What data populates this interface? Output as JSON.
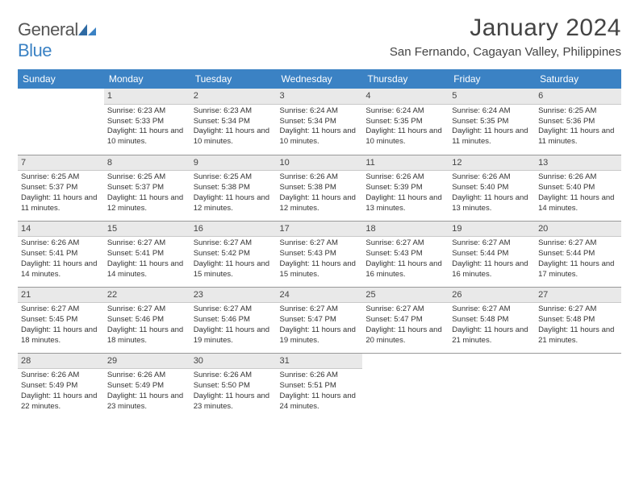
{
  "header": {
    "logo_general": "General",
    "logo_blue": "Blue",
    "month_title": "January 2024",
    "location": "San Fernando, Cagayan Valley, Philippines"
  },
  "colors": {
    "header_bg": "#3b82c4",
    "header_text": "#ffffff",
    "daynum_bg": "#e9e9e9",
    "row_border": "#999999",
    "body_text": "#333333"
  },
  "day_names": [
    "Sunday",
    "Monday",
    "Tuesday",
    "Wednesday",
    "Thursday",
    "Friday",
    "Saturday"
  ],
  "weeks": [
    [
      {
        "n": "",
        "sr": "",
        "ss": "",
        "dl": ""
      },
      {
        "n": "1",
        "sr": "Sunrise: 6:23 AM",
        "ss": "Sunset: 5:33 PM",
        "dl": "Daylight: 11 hours and 10 minutes."
      },
      {
        "n": "2",
        "sr": "Sunrise: 6:23 AM",
        "ss": "Sunset: 5:34 PM",
        "dl": "Daylight: 11 hours and 10 minutes."
      },
      {
        "n": "3",
        "sr": "Sunrise: 6:24 AM",
        "ss": "Sunset: 5:34 PM",
        "dl": "Daylight: 11 hours and 10 minutes."
      },
      {
        "n": "4",
        "sr": "Sunrise: 6:24 AM",
        "ss": "Sunset: 5:35 PM",
        "dl": "Daylight: 11 hours and 10 minutes."
      },
      {
        "n": "5",
        "sr": "Sunrise: 6:24 AM",
        "ss": "Sunset: 5:35 PM",
        "dl": "Daylight: 11 hours and 11 minutes."
      },
      {
        "n": "6",
        "sr": "Sunrise: 6:25 AM",
        "ss": "Sunset: 5:36 PM",
        "dl": "Daylight: 11 hours and 11 minutes."
      }
    ],
    [
      {
        "n": "7",
        "sr": "Sunrise: 6:25 AM",
        "ss": "Sunset: 5:37 PM",
        "dl": "Daylight: 11 hours and 11 minutes."
      },
      {
        "n": "8",
        "sr": "Sunrise: 6:25 AM",
        "ss": "Sunset: 5:37 PM",
        "dl": "Daylight: 11 hours and 12 minutes."
      },
      {
        "n": "9",
        "sr": "Sunrise: 6:25 AM",
        "ss": "Sunset: 5:38 PM",
        "dl": "Daylight: 11 hours and 12 minutes."
      },
      {
        "n": "10",
        "sr": "Sunrise: 6:26 AM",
        "ss": "Sunset: 5:38 PM",
        "dl": "Daylight: 11 hours and 12 minutes."
      },
      {
        "n": "11",
        "sr": "Sunrise: 6:26 AM",
        "ss": "Sunset: 5:39 PM",
        "dl": "Daylight: 11 hours and 13 minutes."
      },
      {
        "n": "12",
        "sr": "Sunrise: 6:26 AM",
        "ss": "Sunset: 5:40 PM",
        "dl": "Daylight: 11 hours and 13 minutes."
      },
      {
        "n": "13",
        "sr": "Sunrise: 6:26 AM",
        "ss": "Sunset: 5:40 PM",
        "dl": "Daylight: 11 hours and 14 minutes."
      }
    ],
    [
      {
        "n": "14",
        "sr": "Sunrise: 6:26 AM",
        "ss": "Sunset: 5:41 PM",
        "dl": "Daylight: 11 hours and 14 minutes."
      },
      {
        "n": "15",
        "sr": "Sunrise: 6:27 AM",
        "ss": "Sunset: 5:41 PM",
        "dl": "Daylight: 11 hours and 14 minutes."
      },
      {
        "n": "16",
        "sr": "Sunrise: 6:27 AM",
        "ss": "Sunset: 5:42 PM",
        "dl": "Daylight: 11 hours and 15 minutes."
      },
      {
        "n": "17",
        "sr": "Sunrise: 6:27 AM",
        "ss": "Sunset: 5:43 PM",
        "dl": "Daylight: 11 hours and 15 minutes."
      },
      {
        "n": "18",
        "sr": "Sunrise: 6:27 AM",
        "ss": "Sunset: 5:43 PM",
        "dl": "Daylight: 11 hours and 16 minutes."
      },
      {
        "n": "19",
        "sr": "Sunrise: 6:27 AM",
        "ss": "Sunset: 5:44 PM",
        "dl": "Daylight: 11 hours and 16 minutes."
      },
      {
        "n": "20",
        "sr": "Sunrise: 6:27 AM",
        "ss": "Sunset: 5:44 PM",
        "dl": "Daylight: 11 hours and 17 minutes."
      }
    ],
    [
      {
        "n": "21",
        "sr": "Sunrise: 6:27 AM",
        "ss": "Sunset: 5:45 PM",
        "dl": "Daylight: 11 hours and 18 minutes."
      },
      {
        "n": "22",
        "sr": "Sunrise: 6:27 AM",
        "ss": "Sunset: 5:46 PM",
        "dl": "Daylight: 11 hours and 18 minutes."
      },
      {
        "n": "23",
        "sr": "Sunrise: 6:27 AM",
        "ss": "Sunset: 5:46 PM",
        "dl": "Daylight: 11 hours and 19 minutes."
      },
      {
        "n": "24",
        "sr": "Sunrise: 6:27 AM",
        "ss": "Sunset: 5:47 PM",
        "dl": "Daylight: 11 hours and 19 minutes."
      },
      {
        "n": "25",
        "sr": "Sunrise: 6:27 AM",
        "ss": "Sunset: 5:47 PM",
        "dl": "Daylight: 11 hours and 20 minutes."
      },
      {
        "n": "26",
        "sr": "Sunrise: 6:27 AM",
        "ss": "Sunset: 5:48 PM",
        "dl": "Daylight: 11 hours and 21 minutes."
      },
      {
        "n": "27",
        "sr": "Sunrise: 6:27 AM",
        "ss": "Sunset: 5:48 PM",
        "dl": "Daylight: 11 hours and 21 minutes."
      }
    ],
    [
      {
        "n": "28",
        "sr": "Sunrise: 6:26 AM",
        "ss": "Sunset: 5:49 PM",
        "dl": "Daylight: 11 hours and 22 minutes."
      },
      {
        "n": "29",
        "sr": "Sunrise: 6:26 AM",
        "ss": "Sunset: 5:49 PM",
        "dl": "Daylight: 11 hours and 23 minutes."
      },
      {
        "n": "30",
        "sr": "Sunrise: 6:26 AM",
        "ss": "Sunset: 5:50 PM",
        "dl": "Daylight: 11 hours and 23 minutes."
      },
      {
        "n": "31",
        "sr": "Sunrise: 6:26 AM",
        "ss": "Sunset: 5:51 PM",
        "dl": "Daylight: 11 hours and 24 minutes."
      },
      {
        "n": "",
        "sr": "",
        "ss": "",
        "dl": ""
      },
      {
        "n": "",
        "sr": "",
        "ss": "",
        "dl": ""
      },
      {
        "n": "",
        "sr": "",
        "ss": "",
        "dl": ""
      }
    ]
  ]
}
